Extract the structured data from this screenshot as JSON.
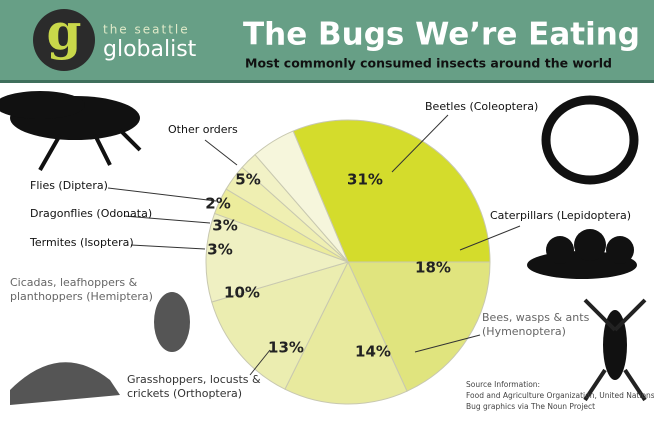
{
  "header": {
    "logo_letter": "g",
    "logo_top": "the seattle",
    "logo_main": "globalist"
  },
  "chart_data": {
    "type": "pie",
    "title": "The Bugs We’re Eating",
    "subtitle": "Most commonly consumed insects around the world",
    "categories": [
      "Beetles (Coleoptera)",
      "Caterpillars (Lepidoptera)",
      "Bees, wasps & ants\n(Hymenoptera)",
      "Grasshoppers, locusts &\ncrickets (Orthoptera)",
      "Cicadas, leafhoppers &\nplanthoppers (Hemiptera)",
      "Termites (Isoptera)",
      "Dragonflies (Odonata)",
      "Flies (Diptera)",
      "Other orders"
    ],
    "values": [
      31,
      18,
      14,
      13,
      10,
      3,
      3,
      2,
      5
    ],
    "value_labels": [
      "31%",
      "18%",
      "14%",
      "13%",
      "10%",
      "3%",
      "3%",
      "2%",
      "5%"
    ],
    "colors": [
      "#d4dc2c",
      "#e0e47e",
      "#e8ea9e",
      "#ebedb0",
      "#eff0c2",
      "#ecec9c",
      "#efefb2",
      "#f2f2c6",
      "#f6f6dc"
    ],
    "source": [
      "Source Information:",
      "Food and Agriculture Organization, United Nations",
      "Bug graphics via The Noun Project"
    ]
  }
}
